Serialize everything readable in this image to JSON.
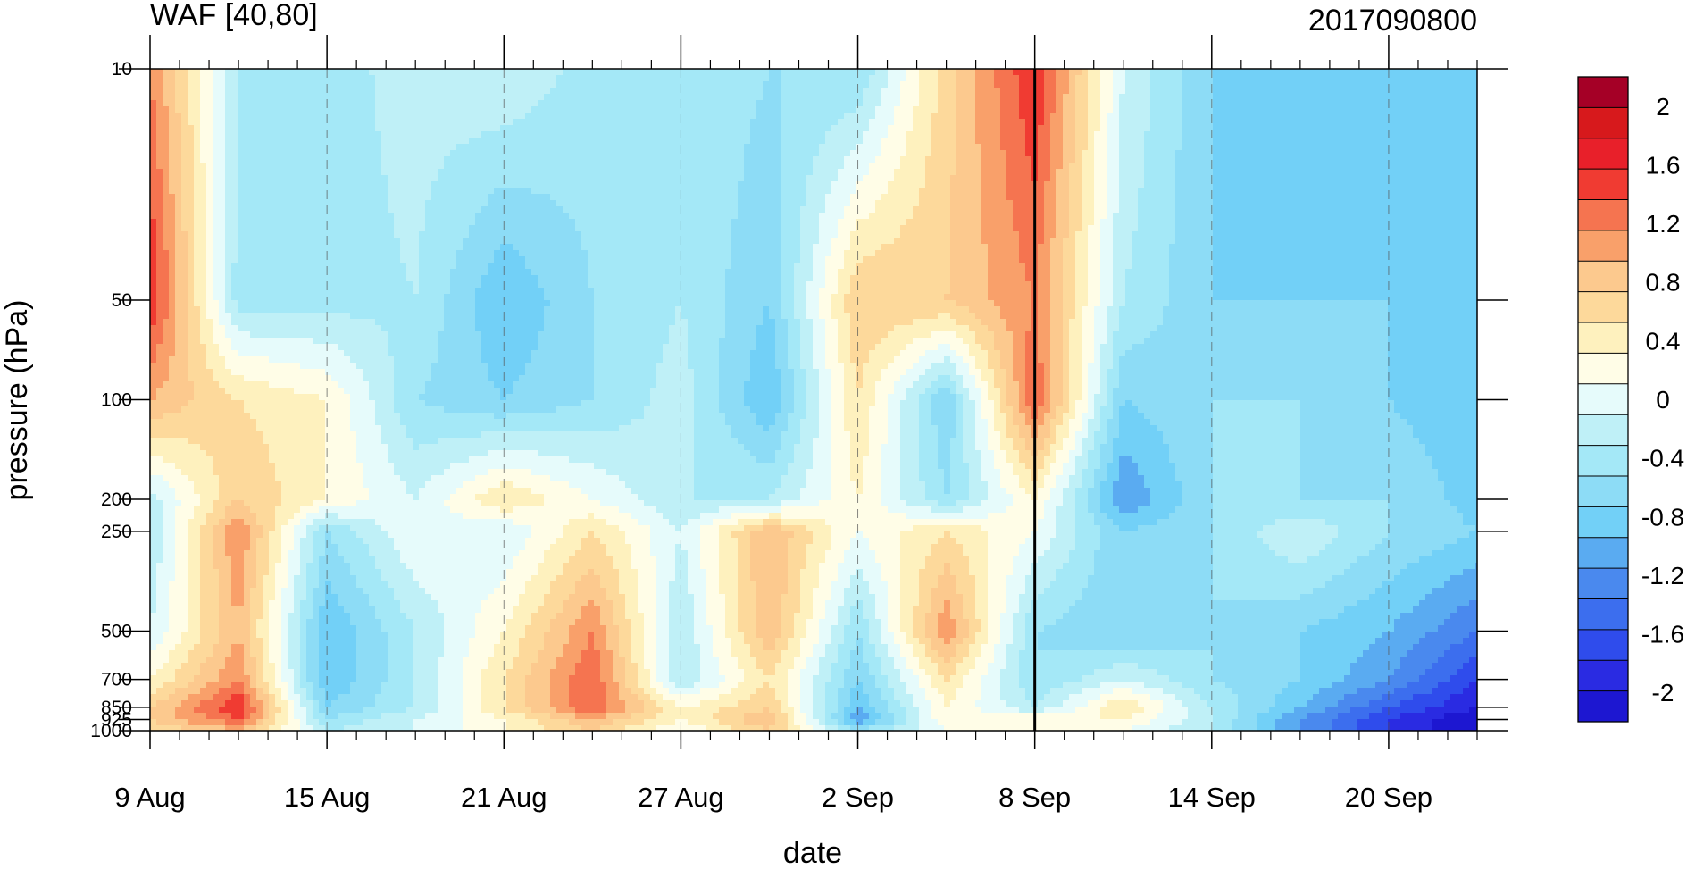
{
  "chart_data": {
    "type": "heatmap",
    "title": "WAF [40,80]",
    "right_title": "2017090800",
    "xlabel": "date",
    "ylabel": "pressure (hPa)",
    "x_axis": {
      "start": "2017-08-09",
      "end": "2017-09-23",
      "tick_labels": [
        "9 Aug",
        "15 Aug",
        "21 Aug",
        "27 Aug",
        "2 Sep",
        "8 Sep",
        "14 Sep",
        "20 Sep"
      ],
      "tick_dates": [
        "2017-08-09",
        "2017-08-15",
        "2017-08-21",
        "2017-08-27",
        "2017-09-02",
        "2017-09-08",
        "2017-09-14",
        "2017-09-20"
      ],
      "minor_tick": "daily",
      "marker_date": "2017-09-08"
    },
    "y_axis": {
      "scale": "log",
      "reversed": true,
      "range": [
        1000,
        10
      ],
      "tick_labels": [
        "10",
        "50",
        "100",
        "200",
        "250",
        "500",
        "700",
        "850",
        "925",
        "1000"
      ],
      "tick_values": [
        10,
        50,
        100,
        200,
        250,
        500,
        700,
        850,
        925,
        1000
      ]
    },
    "grid": "dashed vertical lines at labeled dates",
    "colorbar": {
      "placement": "right",
      "labels": [
        "2",
        "1.6",
        "1.2",
        "0.8",
        "0.4",
        "0",
        "-0.4",
        "-0.8",
        "-1.2",
        "-1.6",
        "-2"
      ],
      "label_values": [
        2,
        1.6,
        1.2,
        0.8,
        0.4,
        0,
        -0.4,
        -0.8,
        -1.2,
        -1.6,
        -2
      ],
      "levels": [
        -2.2,
        -2,
        -1.8,
        -1.6,
        -1.4,
        -1.2,
        -1,
        -0.8,
        -0.6,
        -0.4,
        -0.2,
        0,
        0.2,
        0.4,
        0.6,
        0.8,
        1,
        1.2,
        1.4,
        1.6,
        1.8,
        2,
        2.2
      ],
      "colors_top_to_bottom": [
        "#a50026",
        "#d7191c",
        "#e8202a",
        "#f03b32",
        "#f57450",
        "#f9a06a",
        "#fcc98e",
        "#fdd99b",
        "#fef1be",
        "#fffde7",
        "#e6fbfb",
        "#bff0f7",
        "#a4e8f7",
        "#8ddcf6",
        "#72d0f7",
        "#5aabf1",
        "#4a89ee",
        "#3c6eee",
        "#2f4cec",
        "#2a2be2",
        "#1d17d1"
      ]
    },
    "dates": [
      "2017-08-09",
      "2017-08-12",
      "2017-08-15",
      "2017-08-18",
      "2017-08-21",
      "2017-08-24",
      "2017-08-27",
      "2017-08-30",
      "2017-09-02",
      "2017-09-05",
      "2017-09-08",
      "2017-09-11",
      "2017-09-14",
      "2017-09-17",
      "2017-09-20",
      "2017-09-23"
    ],
    "pressure_levels": [
      10,
      50,
      100,
      200,
      250,
      500,
      700,
      850,
      925,
      1000
    ],
    "values": [
      [
        1.0,
        -0.4,
        -0.5,
        -0.3,
        -0.2,
        -0.5,
        -0.4,
        -0.6,
        -0.6,
        0.5,
        1.4,
        -0.2,
        -0.8,
        -1.0,
        -1.0,
        -1.0
      ],
      [
        1.4,
        -0.5,
        -0.5,
        -0.4,
        -1.0,
        -0.6,
        -0.4,
        -0.8,
        0.6,
        0.6,
        1.0,
        -0.4,
        -0.8,
        -0.8,
        -0.8,
        -0.9
      ],
      [
        0.8,
        0.4,
        0.2,
        -0.6,
        -0.8,
        -0.6,
        -0.3,
        -1.0,
        0.4,
        -0.8,
        1.2,
        -0.8,
        -0.6,
        -0.6,
        -0.8,
        -1.0
      ],
      [
        -0.3,
        0.6,
        0.2,
        -0.2,
        0.4,
        0.0,
        -0.4,
        -0.4,
        0.2,
        -0.6,
        0.2,
        -1.2,
        -0.6,
        -0.6,
        -0.6,
        -0.9
      ],
      [
        -0.4,
        1.0,
        -0.6,
        0.0,
        -0.2,
        0.4,
        -0.2,
        0.8,
        0.0,
        0.4,
        0.0,
        -0.8,
        -0.6,
        -0.2,
        -0.6,
        -0.8
      ],
      [
        -0.2,
        0.8,
        -1.0,
        -0.4,
        0.2,
        1.0,
        -0.4,
        0.8,
        -0.6,
        1.0,
        -0.6,
        -0.8,
        -0.6,
        -0.8,
        -1.0,
        -1.4
      ],
      [
        0.2,
        1.0,
        -1.0,
        -0.4,
        0.4,
        1.2,
        -0.4,
        0.4,
        -0.8,
        0.4,
        -0.6,
        -0.2,
        -0.6,
        -0.8,
        -1.2,
        -1.8
      ],
      [
        0.6,
        1.4,
        -0.8,
        -0.4,
        0.4,
        1.2,
        0.2,
        0.6,
        -1.0,
        0.2,
        -0.4,
        0.4,
        -0.4,
        -1.0,
        -1.6,
        -2.0
      ],
      [
        0.6,
        1.2,
        -0.6,
        -0.2,
        0.2,
        0.8,
        0.2,
        0.8,
        -1.2,
        0.2,
        0.2,
        0.2,
        -0.4,
        -1.2,
        -1.8,
        -2.2
      ],
      [
        0.4,
        0.8,
        -0.4,
        -0.2,
        0.2,
        0.6,
        0.0,
        0.6,
        -0.6,
        0.0,
        0.2,
        0.0,
        -0.4,
        -1.2,
        -1.8,
        -2.2
      ]
    ]
  }
}
